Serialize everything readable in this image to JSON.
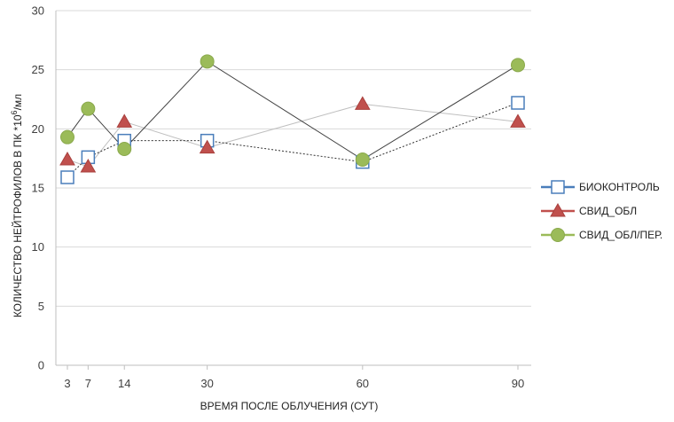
{
  "chart_data": {
    "type": "line",
    "xlabel": "ВРЕМЯ ПОСЛЕ ОБЛУЧЕНИЯ (СУТ)",
    "ylabel_main": "КОЛИЧЕСТВО НЕЙТРОФИЛОВ В ПК *10",
    "ylabel_sup": "6",
    "ylabel_unit": "/мл",
    "ylim": [
      0,
      30
    ],
    "yticks": [
      0,
      5,
      10,
      15,
      20,
      25,
      30
    ],
    "xlim": [
      0,
      90
    ],
    "xticks": [
      3,
      7,
      14,
      30,
      60,
      90
    ],
    "grid": "horizontal",
    "legend_position": "right",
    "series": [
      {
        "name": "БИОКОНТРОЛЬ",
        "marker": "square-open",
        "line_style": "dotted",
        "color": "#4a7ebb",
        "line_color": "#333333",
        "x": [
          3,
          7,
          14,
          30,
          60,
          90
        ],
        "y": [
          15.9,
          17.6,
          19.0,
          19.0,
          17.2,
          22.2
        ]
      },
      {
        "name": "СВИД_ОБЛ",
        "marker": "triangle",
        "line_style": "solid-light",
        "color": "#c0504d",
        "line_color": "#bfbfbf",
        "x": [
          3,
          7,
          14,
          30,
          60,
          90
        ],
        "y": [
          17.4,
          16.8,
          20.6,
          18.4,
          22.1,
          20.6
        ]
      },
      {
        "name": "СВИД_ОБЛ/ПЕР.",
        "marker": "circle",
        "line_style": "solid",
        "color": "#9bbb59",
        "line_color": "#404040",
        "x": [
          3,
          7,
          14,
          30,
          60,
          90
        ],
        "y": [
          19.3,
          21.7,
          18.3,
          25.7,
          17.4,
          25.4
        ]
      }
    ]
  }
}
